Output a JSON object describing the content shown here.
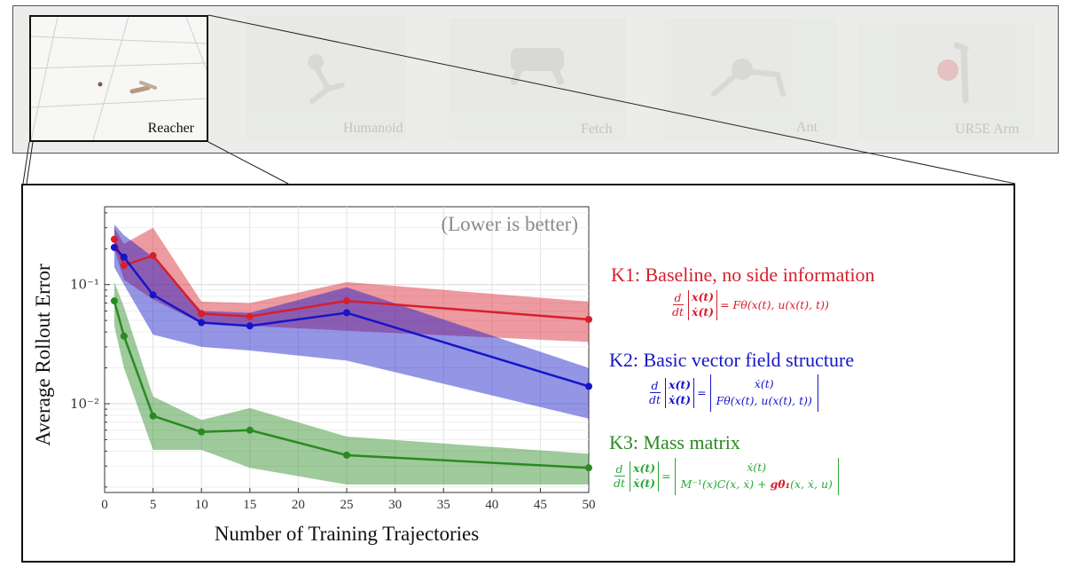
{
  "thumbnails": [
    {
      "label": "Reacher"
    },
    {
      "label": "Humanoid"
    },
    {
      "label": "Fetch"
    },
    {
      "label": "Ant"
    },
    {
      "label": "UR5E Arm"
    }
  ],
  "colors": {
    "k1": "#d61f2c",
    "k2": "#1515c8",
    "k3": "#2a8a22",
    "k3_eq": "#2aa83a"
  },
  "legend": {
    "k1_title": "K1: Baseline, no side information",
    "k1_eq_rhs": "= Fθ(x(t), u(x(t), t))",
    "k2_title": "K2: Basic vector field structure",
    "k2_eq_row1": "ẋ(t)",
    "k2_eq_row2": "Fθ(x(t), u(x(t), t))",
    "k3_title": "K3: Mass matrix",
    "k3_eq_row1": "ẋ(t)",
    "k3_eq_row2a": "M⁻¹(x)C(x, ẋ) + ",
    "k3_eq_row2b": "gθ₁",
    "k3_eq_row2c": "(x, ẋ, u)",
    "eq_d": "d",
    "eq_dt": "dt",
    "eq_vec_top": "x(t)",
    "eq_vec_bottom": "ẋ(t)",
    "eq_equals": "="
  },
  "chart_data": {
    "type": "line",
    "annotation": "(Lower is better)",
    "xlabel": "Number of Training Trajectories",
    "ylabel": "Average Rollout Error",
    "xlim": [
      0,
      50
    ],
    "ylim": [
      0.0018,
      0.45
    ],
    "yscale": "log",
    "grid": true,
    "xticks": [
      0,
      5,
      10,
      15,
      20,
      25,
      30,
      35,
      40,
      45,
      50
    ],
    "yticks": [
      {
        "value": 0.1,
        "label": "10⁻¹"
      },
      {
        "value": 0.01,
        "label": "10⁻²"
      }
    ],
    "x": [
      1,
      2,
      5,
      10,
      15,
      25,
      50
    ],
    "series": [
      {
        "name": "K1: Baseline, no side information",
        "key": "k1",
        "values": [
          0.24,
          0.145,
          0.175,
          0.057,
          0.054,
          0.073,
          0.051
        ],
        "lower": [
          0.2,
          0.11,
          0.075,
          0.047,
          0.045,
          0.041,
          0.033
        ],
        "upper": [
          0.3,
          0.22,
          0.3,
          0.072,
          0.07,
          0.105,
          0.072
        ]
      },
      {
        "name": "K2: Basic vector field structure",
        "key": "k2",
        "values": [
          0.205,
          0.17,
          0.082,
          0.048,
          0.045,
          0.058,
          0.014
        ],
        "lower": [
          0.14,
          0.1,
          0.038,
          0.03,
          0.028,
          0.023,
          0.0075
        ],
        "upper": [
          0.32,
          0.26,
          0.17,
          0.06,
          0.058,
          0.095,
          0.02
        ]
      },
      {
        "name": "K3: Mass matrix",
        "key": "k3",
        "values": [
          0.073,
          0.037,
          0.0079,
          0.0058,
          0.006,
          0.0037,
          0.0029
        ],
        "lower": [
          0.045,
          0.02,
          0.0041,
          0.0041,
          0.0029,
          0.0021,
          0.0021
        ],
        "upper": [
          0.105,
          0.065,
          0.0115,
          0.0073,
          0.0092,
          0.0053,
          0.0038
        ]
      }
    ]
  }
}
